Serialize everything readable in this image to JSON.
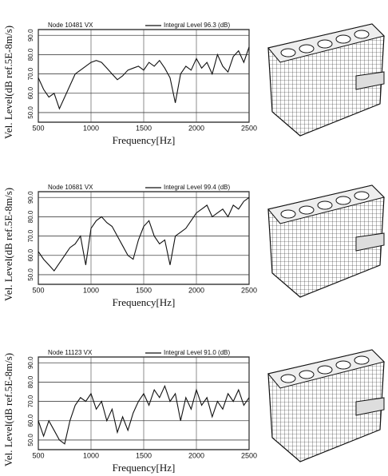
{
  "chart_data": [
    {
      "type": "line",
      "title": "Node 10481 VX",
      "x_label": "Frequency[Hz]",
      "y_label": "Vel. Level(dB ref.5E-8m/s)",
      "x": [
        500,
        550,
        600,
        650,
        700,
        750,
        800,
        850,
        900,
        950,
        1000,
        1050,
        1100,
        1150,
        1200,
        1250,
        1300,
        1350,
        1400,
        1450,
        1500,
        1550,
        1600,
        1650,
        1700,
        1750,
        1800,
        1850,
        1900,
        1950,
        2000,
        2050,
        2100,
        2150,
        2200,
        2250,
        2300,
        2350,
        2400,
        2450,
        2500
      ],
      "series": [
        {
          "name": "Integral Level 96.3 (dB)",
          "color": "#111111",
          "values": [
            68,
            62,
            58,
            60,
            52,
            58,
            64,
            70,
            72,
            74,
            76,
            77,
            76,
            73,
            70,
            67,
            69,
            72,
            73,
            74,
            72,
            76,
            74,
            77,
            73,
            68,
            55,
            70,
            74,
            72,
            78,
            73,
            76,
            70,
            80,
            74,
            71,
            79,
            82,
            76,
            84
          ]
        }
      ],
      "xlim": [
        500,
        2500
      ],
      "xticks": [
        500,
        1000,
        1500,
        2000,
        2500
      ],
      "ylim": [
        45,
        93
      ],
      "yticks": [
        {
          "value": 50,
          "label": "50.0"
        },
        {
          "value": 60,
          "label": "60.0"
        },
        {
          "value": 70,
          "label": "70.0"
        },
        {
          "value": 80,
          "label": "80.0"
        },
        {
          "value": 90,
          "label": "90.0"
        }
      ],
      "grid": true
    },
    {
      "type": "line",
      "title": "Node 10681 VX",
      "x_label": "Frequency[Hz]",
      "y_label": "Vel. Level(dB ref.5E-8m/s)",
      "x": [
        500,
        550,
        600,
        650,
        700,
        750,
        800,
        850,
        900,
        950,
        1000,
        1050,
        1100,
        1150,
        1200,
        1250,
        1300,
        1350,
        1400,
        1450,
        1500,
        1550,
        1600,
        1650,
        1700,
        1750,
        1800,
        1850,
        1900,
        1950,
        2000,
        2050,
        2100,
        2150,
        2200,
        2250,
        2300,
        2350,
        2400,
        2450,
        2500
      ],
      "series": [
        {
          "name": "Integral Level 99.4 (dB)",
          "color": "#111111",
          "values": [
            62,
            58,
            55,
            52,
            56,
            60,
            64,
            66,
            70,
            55,
            74,
            78,
            80,
            77,
            75,
            70,
            65,
            60,
            58,
            68,
            75,
            78,
            70,
            66,
            68,
            55,
            70,
            72,
            74,
            78,
            82,
            84,
            86,
            80,
            82,
            84,
            80,
            86,
            84,
            88,
            90
          ]
        }
      ],
      "xlim": [
        500,
        2500
      ],
      "xticks": [
        500,
        1000,
        1500,
        2000,
        2500
      ],
      "ylim": [
        45,
        93
      ],
      "yticks": [
        {
          "value": 50,
          "label": "50.0"
        },
        {
          "value": 60,
          "label": "60.0"
        },
        {
          "value": 70,
          "label": "70.0"
        },
        {
          "value": 80,
          "label": "80.0"
        },
        {
          "value": 90,
          "label": "90.0"
        }
      ],
      "grid": true
    },
    {
      "type": "line",
      "title": "Node 11123 VX",
      "x_label": "Frequency[Hz]",
      "y_label": "Vel. Level(dB ref.5E-8m/s)",
      "x": [
        500,
        550,
        600,
        650,
        700,
        750,
        800,
        850,
        900,
        950,
        1000,
        1050,
        1100,
        1150,
        1200,
        1250,
        1300,
        1350,
        1400,
        1450,
        1500,
        1550,
        1600,
        1650,
        1700,
        1750,
        1800,
        1850,
        1900,
        1950,
        2000,
        2050,
        2100,
        2150,
        2200,
        2250,
        2300,
        2350,
        2400,
        2450,
        2500
      ],
      "series": [
        {
          "name": "Integral Level 91.0 (dB)",
          "color": "#111111",
          "values": [
            60,
            52,
            60,
            55,
            50,
            48,
            60,
            68,
            72,
            70,
            74,
            66,
            70,
            60,
            66,
            54,
            62,
            55,
            64,
            70,
            74,
            68,
            76,
            72,
            78,
            70,
            74,
            60,
            72,
            66,
            76,
            68,
            72,
            62,
            70,
            66,
            74,
            70,
            76,
            68,
            72
          ]
        }
      ],
      "xlim": [
        500,
        2500
      ],
      "xticks": [
        500,
        1000,
        1500,
        2000,
        2500
      ],
      "ylim": [
        45,
        93
      ],
      "yticks": [
        {
          "value": 50,
          "label": "50.0"
        },
        {
          "value": 60,
          "label": "60.0"
        },
        {
          "value": 70,
          "label": "70.0"
        },
        {
          "value": 80,
          "label": "80.0"
        },
        {
          "value": 90,
          "label": "90.0"
        }
      ],
      "grid": true
    }
  ]
}
